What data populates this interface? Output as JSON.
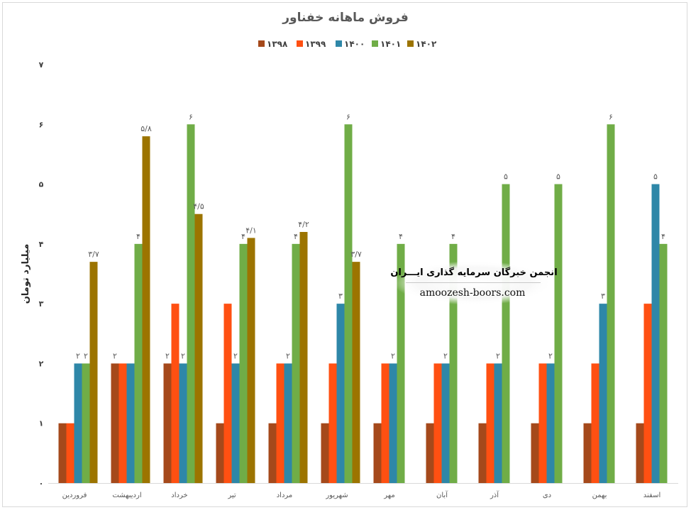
{
  "chart_data": {
    "type": "bar",
    "title": "فروش ماهانه خفناور",
    "ylabel": "میلیارد تومان",
    "xlabel": "",
    "ylim": [
      0,
      7
    ],
    "yticks": [
      "۰",
      "۱",
      "۲",
      "۳",
      "۴",
      "۵",
      "۶",
      "۷"
    ],
    "grid": false,
    "legend_position": "top",
    "categories": [
      "فروردین",
      "اردیبهشت",
      "خرداد",
      "تیر",
      "مرداد",
      "شهریور",
      "مهر",
      "آبان",
      "آذر",
      "دی",
      "بهمن",
      "اسفند"
    ],
    "series": [
      {
        "name": "۱۳۹۸",
        "color": "#A5491B",
        "values": [
          1,
          2,
          2,
          1,
          1,
          1,
          1,
          1,
          1,
          1,
          1,
          1
        ],
        "labels": [
          null,
          "۲",
          "۲",
          null,
          null,
          null,
          null,
          null,
          null,
          null,
          null,
          null
        ]
      },
      {
        "name": "۱۳۹۹",
        "color": "#FF5012",
        "values": [
          1,
          2,
          3,
          3,
          2,
          2,
          2,
          2,
          2,
          2,
          2,
          3
        ],
        "labels": [
          null,
          null,
          null,
          null,
          null,
          null,
          null,
          null,
          null,
          null,
          null,
          null
        ]
      },
      {
        "name": "۱۴۰۰",
        "color": "#2E87A8",
        "values": [
          2,
          2,
          2,
          2,
          2,
          3,
          2,
          2,
          2,
          2,
          3,
          5
        ],
        "labels": [
          "۲",
          null,
          "۲",
          "۲",
          "۲",
          "۳",
          "۲",
          "۲",
          "۲",
          "۲",
          "۳",
          "۵"
        ]
      },
      {
        "name": "۱۴۰۱",
        "color": "#70AD47",
        "values": [
          2,
          4,
          6,
          4,
          4,
          6,
          4,
          4,
          5,
          5,
          6,
          4
        ],
        "labels": [
          "۲",
          "۴",
          "۶",
          "۴",
          "۴",
          "۶",
          "۴",
          "۴",
          "۵",
          "۵",
          "۶",
          "۴"
        ]
      },
      {
        "name": "۱۴۰۲",
        "color": "#9C7400",
        "values": [
          3.7,
          5.8,
          4.5,
          4.1,
          4.2,
          3.7,
          null,
          null,
          null,
          null,
          null,
          null
        ],
        "labels": [
          "۳/۷",
          "۵/۸",
          "۴/۵",
          "۴/۱",
          "۴/۲",
          "۳/۷",
          null,
          null,
          null,
          null,
          null,
          null
        ]
      }
    ]
  },
  "watermark": {
    "line1": "انجمن خبرگان سرمایه گذاری ایـــران",
    "line2": "amoozesh-boors.com"
  }
}
